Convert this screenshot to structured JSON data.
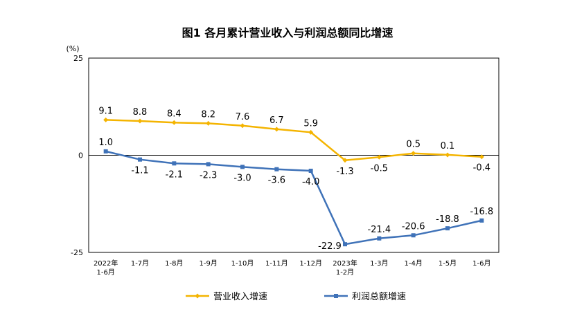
{
  "chart_data": {
    "type": "line",
    "title": "图1  各月累计营业收入与利润总额同比增速",
    "yunit": "(%)",
    "ylim": [
      -25,
      25
    ],
    "yticks": [
      "25",
      "0",
      "-25"
    ],
    "categories": [
      [
        "2022年",
        "1-6月"
      ],
      [
        "1-7月"
      ],
      [
        "1-8月"
      ],
      [
        "1-9月"
      ],
      [
        "1-10月"
      ],
      [
        "1-11月"
      ],
      [
        "1-12月"
      ],
      [
        "2023年",
        "1-2月"
      ],
      [
        "1-3月"
      ],
      [
        "1-4月"
      ],
      [
        "1-5月"
      ],
      [
        "1-6月"
      ]
    ],
    "series": [
      {
        "name": "营业收入增速",
        "color": "#F4B400",
        "values": [
          9.1,
          8.8,
          8.4,
          8.2,
          7.6,
          6.7,
          5.9,
          -1.3,
          -0.5,
          0.5,
          0.1,
          -0.4
        ],
        "labels": [
          "9.1",
          "8.8",
          "8.4",
          "8.2",
          "7.6",
          "6.7",
          "5.9",
          "-1.3",
          "-0.5",
          "0.5",
          "0.1",
          "-0.4"
        ]
      },
      {
        "name": "利润总额增速",
        "color": "#3F72B8",
        "values": [
          1.0,
          -1.1,
          -2.1,
          -2.3,
          -3.0,
          -3.6,
          -4.0,
          -22.9,
          -21.4,
          -20.6,
          -18.8,
          -16.8
        ],
        "labels": [
          "1.0",
          "-1.1",
          "-2.1",
          "-2.3",
          "-3.0",
          "-3.6",
          "-4.0",
          "-22.9",
          "-21.4",
          "-20.6",
          "-18.8",
          "-16.8"
        ]
      }
    ],
    "legend": "bottom",
    "grid": false
  }
}
